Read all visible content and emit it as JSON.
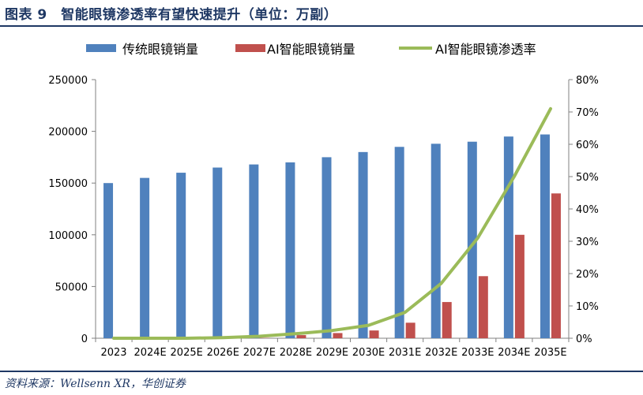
{
  "header": {
    "title": "图表 9　智能眼镜渗透率有望快速提升（单位：万副）"
  },
  "footer": {
    "source": "资料来源：Wellsenn XR，华创证券"
  },
  "colors": {
    "blue": "#4f81bd",
    "red": "#c0504d",
    "green": "#9bbb59",
    "title": "#1f3864"
  },
  "chart_data": {
    "type": "bar",
    "title": "图表 9　智能眼镜渗透率有望快速提升（单位：万副）",
    "legend_position": "top",
    "grid": false,
    "categories": [
      "2023",
      "2024E",
      "2025E",
      "2026E",
      "2027E",
      "2028E",
      "2029E",
      "2030E",
      "2031E",
      "2032E",
      "2033E",
      "2034E",
      "2035E"
    ],
    "series": [
      {
        "name": "传统眼镜销量",
        "type": "bar",
        "axis": "left",
        "values": [
          150000,
          155000,
          160000,
          165000,
          168000,
          170000,
          175000,
          180000,
          185000,
          188000,
          190000,
          195000,
          197000
        ]
      },
      {
        "name": "AI智能眼镜销量",
        "type": "bar",
        "axis": "left",
        "values": [
          0,
          0,
          0,
          0,
          300,
          3000,
          5000,
          7500,
          15000,
          35000,
          60000,
          100000,
          140000
        ]
      },
      {
        "name": "AI智能眼镜渗透率",
        "type": "line",
        "axis": "right",
        "values": [
          0,
          0,
          0,
          0.2,
          0.6,
          1.4,
          2.4,
          4.0,
          8.0,
          17.0,
          31.0,
          50.0,
          71.0
        ]
      }
    ],
    "y_left": {
      "min": 0,
      "max": 250000,
      "ticks": [
        "0",
        "50000",
        "100000",
        "150000",
        "200000",
        "250000"
      ]
    },
    "y_right": {
      "min": 0,
      "max": 80,
      "ticks": [
        "0%",
        "10%",
        "20%",
        "30%",
        "40%",
        "50%",
        "60%",
        "70%",
        "80%"
      ]
    }
  }
}
